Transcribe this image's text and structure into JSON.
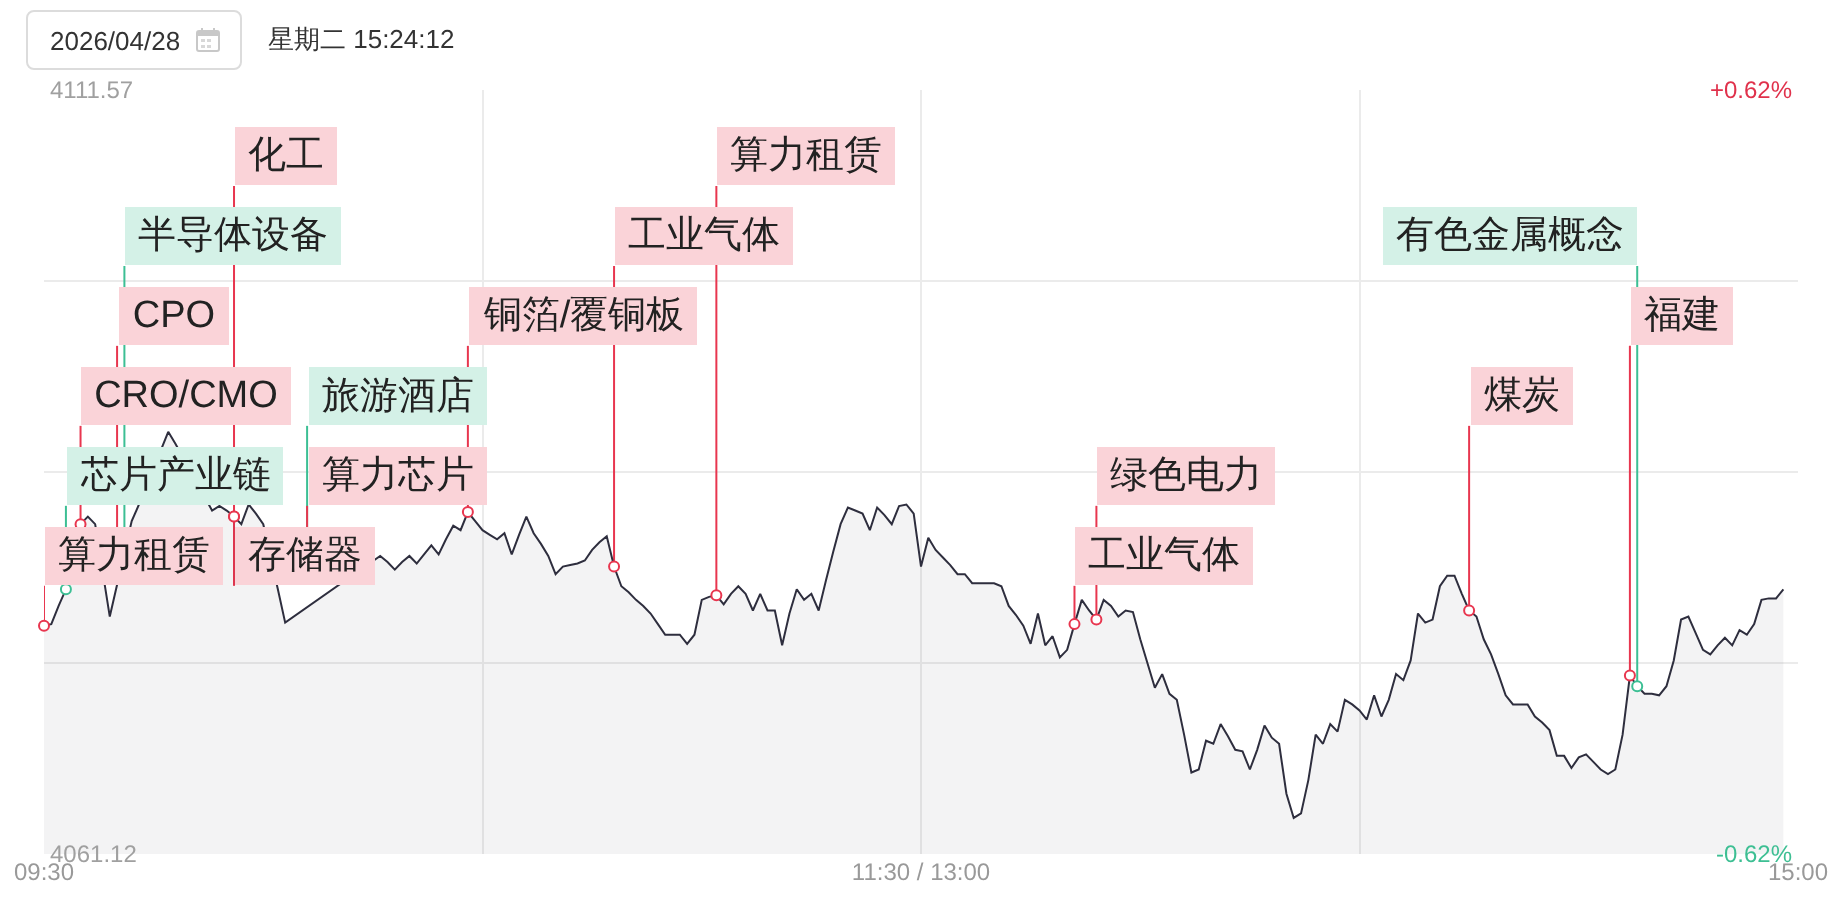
{
  "chart_data": {
    "type": "area",
    "title": "2026/04/28",
    "subtitle": "星期二 15:24:12",
    "categories": [
      "09:30",
      null,
      null,
      null,
      null,
      null,
      null,
      null,
      null,
      null,
      null,
      null,
      null,
      null,
      null,
      null,
      null,
      null,
      null,
      null,
      null,
      null,
      null,
      null,
      null,
      null,
      null,
      null,
      null,
      null,
      null,
      null,
      null,
      null,
      null,
      null,
      null,
      null,
      null,
      null,
      null,
      null,
      null,
      null,
      null,
      null,
      null,
      null,
      null,
      null,
      null,
      null,
      null,
      null,
      null,
      null,
      null,
      null,
      null,
      null,
      null,
      null,
      null,
      null,
      null,
      null,
      null,
      null,
      null,
      null,
      null,
      null,
      null,
      null,
      null,
      null,
      null,
      null,
      null,
      null,
      null,
      null,
      null,
      null,
      null,
      null,
      null,
      null,
      null,
      null,
      null,
      null,
      null,
      null,
      null,
      null,
      null,
      null,
      null,
      null,
      null,
      null,
      null,
      null,
      null,
      null,
      null,
      null,
      null,
      null,
      null,
      null,
      null,
      null,
      null,
      null,
      null,
      null,
      null,
      null,
      "11:30 / 13:00",
      null,
      null,
      null,
      null,
      null,
      null,
      null,
      null,
      null,
      null,
      null,
      null,
      null,
      null,
      null,
      null,
      null,
      null,
      null,
      null,
      null,
      null,
      null,
      null,
      null,
      null,
      null,
      null,
      null,
      null,
      null,
      null,
      null,
      null,
      null,
      null,
      null,
      null,
      null,
      null,
      null,
      null,
      null,
      null,
      null,
      null,
      null,
      null,
      null,
      null,
      null,
      null,
      null,
      null,
      null,
      null,
      null,
      null,
      null,
      null,
      null,
      null,
      null,
      null,
      null,
      null,
      null,
      null,
      null,
      null,
      null,
      null,
      null,
      null,
      null,
      null,
      null,
      null,
      null,
      null,
      null,
      null,
      null,
      null,
      null,
      null,
      null,
      null,
      null,
      null,
      null,
      null,
      null,
      null,
      null,
      null,
      null,
      null,
      null,
      null,
      null,
      null,
      null,
      null,
      null,
      null,
      null,
      null,
      null,
      null,
      null,
      null,
      null,
      null,
      null,
      null,
      null,
      null,
      null,
      "15:00"
    ],
    "ylim": [
      4061.12,
      4111.57
    ],
    "yticks": [
      {
        "value": 4061.12,
        "label": "4061.12"
      },
      {
        "value": 4073.73,
        "label": null
      },
      {
        "value": 4086.35,
        "label": null
      },
      {
        "value": 4098.96,
        "label": null
      },
      {
        "value": 4111.57,
        "label": "4111.57"
      }
    ],
    "y2lim": [
      -0.62,
      0.62
    ],
    "y2ticks": [
      {
        "value": -0.62,
        "label": "-0.62%"
      },
      {
        "value": 0.62,
        "label": "+0.62%"
      }
    ],
    "grid": true,
    "series": [
      {
        "color": "#2e2e3e",
        "values": [
          4076.2,
          4076.3,
          4077.5,
          4078.6,
          null,
          4082.9,
          4083.4,
          4082.9,
          null,
          4076.8,
          null,
          null,
          4083.1,
          4084.2,
          null,
          null,
          null,
          4089.0,
          4088.2,
          null,
          null,
          null,
          null,
          4083.8,
          4084.1,
          4083.8,
          4083.4,
          4082.9,
          4084.2,
          4083.6,
          4082.9,
          null,
          4078.6,
          4076.4,
          null,
          null,
          null,
          null,
          null,
          null,
          null,
          null,
          null,
          null,
          null,
          null,
          4080.8,
          4080.4,
          4079.9,
          4080.4,
          4080.8,
          4080.3,
          4080.9,
          4081.5,
          4080.9,
          4081.9,
          4082.8,
          4082.5,
          4083.7,
          4083.1,
          4082.5,
          4082.2,
          4081.9,
          4082.3,
          4080.9,
          4082.2,
          4083.4,
          4082.3,
          4081.6,
          4080.8,
          4079.6,
          4080.1,
          4080.2,
          4080.3,
          4080.5,
          4081.2,
          4081.7,
          4082.1,
          4080.1,
          4078.8,
          4078.4,
          4077.9,
          4077.5,
          4077.0,
          4076.3,
          4075.6,
          4075.6,
          4075.6,
          4075.0,
          4075.6,
          4077.9,
          4078.1,
          4078.2,
          4077.6,
          4078.3,
          4078.8,
          4078.3,
          4077.2,
          4078.3,
          4077.2,
          4077.2,
          4074.9,
          4077.0,
          4078.6,
          4077.9,
          4078.3,
          4077.2,
          4079.2,
          4081.1,
          4082.9,
          4084.0,
          4083.8,
          4083.6,
          4082.5,
          4084.0,
          4083.5,
          4082.9,
          4084.1,
          4084.2,
          4083.6,
          4080.1,
          4082.0,
          4081.2,
          4080.7,
          4080.2,
          4079.6,
          4079.6,
          4079.0,
          4079.0,
          4079.0,
          4079.0,
          4078.8,
          4077.5,
          4076.9,
          4076.2,
          4075.0,
          4077.0,
          4074.9,
          4075.5,
          4074.1,
          4074.6,
          4076.3,
          4077.9,
          4077.2,
          4076.6,
          4077.9,
          4077.5,
          4076.8,
          4077.2,
          4077.1,
          4075.3,
          4073.7,
          4072.1,
          4073.0,
          4071.7,
          4071.3,
          4069.0,
          4066.5,
          4066.7,
          4068.6,
          4068.4,
          4069.7,
          4068.9,
          4068.0,
          4067.9,
          4066.7,
          4068.0,
          4069.6,
          4068.8,
          4068.4,
          4065.1,
          4063.5,
          4063.8,
          4066.0,
          4069.0,
          4068.4,
          4069.7,
          4069.2,
          4071.3,
          4071.0,
          4070.6,
          4070.0,
          4071.6,
          4070.2,
          4071.3,
          4073.0,
          4072.6,
          4073.9,
          4077.0,
          4076.4,
          4076.6,
          4078.8,
          4079.5,
          4079.5,
          4078.3,
          4077.2,
          4076.8,
          4075.3,
          4074.3,
          4073.0,
          4071.6,
          4071.0,
          4071.0,
          4071.0,
          4070.2,
          4069.8,
          4069.3,
          4067.6,
          4067.6,
          4066.8,
          4067.5,
          4067.7,
          4067.2,
          4066.7,
          4066.4,
          4066.7,
          4069.0,
          4072.9,
          4072.2,
          4071.7,
          4071.7,
          4071.6,
          4072.2,
          4073.9,
          4076.6,
          4076.8,
          4075.7,
          4074.6,
          4074.3,
          4074.9,
          4075.4,
          4074.9,
          4075.9,
          4075.6,
          4076.3,
          4077.9,
          4078.0,
          4078.0,
          4078.6,
          null,
          null
        ]
      },
      {
        "type": "scatter",
        "color": "#3cbf94",
        "values": [
          null,
          null,
          null,
          4078.6,
          null,
          null,
          null,
          null,
          null,
          null,
          null,
          null,
          null,
          null,
          null,
          null,
          null,
          null,
          null,
          null,
          null,
          null,
          null,
          null,
          null,
          null,
          null,
          null,
          null,
          null,
          null,
          null,
          null,
          null,
          null,
          null,
          null,
          null,
          null,
          null,
          null,
          null,
          null,
          null,
          null,
          null,
          null,
          null,
          null,
          null,
          null,
          null,
          null,
          null,
          null,
          null,
          null,
          null,
          null,
          null,
          null,
          null,
          null,
          null,
          null,
          null,
          null,
          null,
          null,
          null,
          null,
          null,
          null,
          null,
          null,
          null,
          null,
          null,
          null,
          null,
          null,
          null,
          null,
          null,
          null,
          null,
          null,
          null,
          null,
          null,
          null,
          null,
          null,
          null,
          null,
          null,
          null,
          null,
          null,
          null,
          null,
          null,
          null,
          null,
          null,
          null,
          null,
          null,
          null,
          null,
          null,
          null,
          null,
          null,
          null,
          null,
          null,
          null,
          null,
          null,
          null,
          null,
          null,
          null,
          null,
          null,
          null,
          null,
          null,
          null,
          null,
          null,
          null,
          null,
          null,
          null,
          null,
          null,
          null,
          null,
          null,
          null,
          null,
          null,
          null,
          null,
          null,
          null,
          null,
          null,
          null,
          null,
          null,
          null,
          null,
          null,
          null,
          null,
          null,
          null,
          null,
          null,
          null,
          null,
          null,
          null,
          null,
          null,
          null,
          null,
          null,
          null,
          null,
          null,
          null,
          null,
          null,
          null,
          null,
          null,
          null,
          null,
          null,
          null,
          null,
          null,
          null,
          null,
          null,
          null,
          null,
          null,
          null,
          null,
          null,
          null,
          null,
          null,
          null,
          null,
          null,
          null,
          null,
          null,
          null,
          null,
          null,
          null,
          null,
          null,
          null,
          null,
          null,
          null,
          null,
          null,
          null,
          null,
          4072.2,
          null,
          null,
          null,
          null,
          null,
          null,
          null,
          null,
          null,
          null,
          null,
          null,
          null,
          null,
          null,
          null,
          null,
          null,
          null,
          null,
          null,
          null
        ],
        "value_labels": [
          null,
          null,
          null,
          "芯片产业链",
          null,
          null,
          null,
          null,
          null,
          null,
          null,
          "半导体设备",
          null,
          null,
          null,
          null,
          null,
          null,
          null,
          null,
          null,
          null,
          null,
          null,
          null,
          null,
          null,
          null,
          null,
          null,
          null,
          null,
          null,
          null,
          null,
          null,
          "旅游酒店",
          null,
          null,
          null,
          null,
          null,
          null,
          null,
          null,
          null,
          null,
          null,
          null,
          null,
          null,
          null,
          null,
          null,
          null,
          null,
          null,
          null,
          null,
          null,
          null,
          null,
          null,
          null,
          null,
          null,
          null,
          null,
          null,
          null,
          null,
          null,
          null,
          null,
          null,
          null,
          null,
          null,
          null,
          null,
          null,
          null,
          null,
          null,
          null,
          null,
          null,
          null,
          null,
          null,
          null,
          null,
          null,
          null,
          null,
          null,
          null,
          null,
          null,
          null,
          null,
          null,
          null,
          null,
          null,
          null,
          null,
          null,
          null,
          null,
          null,
          null,
          null,
          null,
          null,
          null,
          null,
          null,
          null,
          null,
          null,
          null,
          null,
          null,
          null,
          null,
          null,
          null,
          null,
          null,
          null,
          null,
          null,
          null,
          null,
          null,
          null,
          null,
          null,
          null,
          null,
          null,
          null,
          null,
          null,
          null,
          null,
          null,
          null,
          null,
          null,
          null,
          null,
          null,
          null,
          null,
          null,
          null,
          null,
          null,
          null,
          null,
          null,
          null,
          null,
          null,
          null,
          null,
          null,
          null,
          null,
          null,
          null,
          null,
          null,
          null,
          null,
          null,
          null,
          null,
          null,
          null,
          null,
          null,
          null,
          null,
          null,
          null,
          null,
          null,
          null,
          null,
          null,
          null,
          null,
          null,
          null,
          null,
          null,
          null,
          null,
          null,
          null,
          null,
          null,
          null,
          null,
          null,
          null,
          null,
          null,
          null,
          null,
          null,
          null,
          null,
          null,
          null,
          "有色金属概念",
          null,
          null,
          null,
          null,
          null,
          null,
          null,
          null,
          null,
          null,
          null,
          null,
          null,
          null,
          null,
          null,
          null,
          null,
          null,
          null,
          null,
          null
        ]
      },
      {
        "type": "scatter",
        "color": "#e8364f",
        "values": [
          4076.2,
          null,
          null,
          null,
          null,
          4082.9,
          null,
          null,
          null,
          null,
          null,
          null,
          null,
          null,
          null,
          null,
          null,
          null,
          null,
          null,
          null,
          null,
          null,
          null,
          null,
          null,
          4083.4,
          null,
          null,
          null,
          null,
          null,
          null,
          null,
          null,
          null,
          null,
          null,
          null,
          null,
          null,
          null,
          null,
          null,
          null,
          null,
          null,
          null,
          null,
          null,
          null,
          null,
          null,
          null,
          null,
          null,
          null,
          null,
          4083.7,
          null,
          null,
          null,
          null,
          null,
          null,
          null,
          null,
          null,
          null,
          null,
          null,
          null,
          null,
          null,
          null,
          null,
          null,
          null,
          4080.1,
          null,
          null,
          null,
          null,
          null,
          null,
          null,
          null,
          null,
          null,
          null,
          null,
          null,
          4078.2,
          null,
          null,
          null,
          null,
          null,
          null,
          null,
          null,
          null,
          null,
          null,
          null,
          null,
          null,
          null,
          null,
          null,
          null,
          null,
          null,
          null,
          null,
          null,
          null,
          null,
          null,
          null,
          null,
          null,
          null,
          null,
          null,
          null,
          null,
          null,
          null,
          null,
          null,
          null,
          null,
          null,
          null,
          null,
          null,
          null,
          null,
          null,
          null,
          4076.3,
          null,
          null,
          4076.6,
          null,
          null,
          null,
          null,
          null,
          null,
          null,
          null,
          null,
          null,
          null,
          null,
          null,
          null,
          null,
          null,
          null,
          null,
          null,
          null,
          null,
          null,
          null,
          null,
          null,
          null,
          null,
          null,
          null,
          null,
          null,
          null,
          null,
          null,
          null,
          null,
          null,
          null,
          null,
          null,
          null,
          null,
          null,
          null,
          null,
          null,
          null,
          null,
          null,
          null,
          4077.2,
          null,
          null,
          null,
          null,
          null,
          null,
          null,
          null,
          null,
          null,
          null,
          null,
          null,
          null,
          null,
          null,
          null,
          null,
          null,
          null,
          null,
          4072.9,
          null,
          null,
          null,
          null,
          null,
          null,
          null,
          null,
          null,
          null,
          null,
          null,
          null,
          null,
          null,
          null,
          null,
          null,
          null,
          null,
          null,
          null,
          null
        ],
        "value_labels": [
          "算力租赁",
          null,
          null,
          null,
          null,
          "CRO/CMO",
          null,
          null,
          null,
          null,
          "CPO",
          null,
          null,
          null,
          null,
          null,
          null,
          null,
          null,
          null,
          null,
          null,
          null,
          null,
          null,
          null,
          "存储器",
          null,
          null,
          null,
          null,
          null,
          null,
          null,
          null,
          null,
          "算力芯片",
          null,
          null,
          null,
          null,
          null,
          null,
          null,
          null,
          null,
          null,
          null,
          null,
          null,
          null,
          null,
          null,
          null,
          null,
          null,
          null,
          null,
          "铜箔/覆铜板",
          null,
          null,
          null,
          null,
          null,
          null,
          null,
          null,
          null,
          null,
          null,
          null,
          null,
          null,
          null,
          null,
          null,
          null,
          null,
          "工业气体",
          null,
          null,
          null,
          null,
          null,
          null,
          null,
          null,
          null,
          null,
          null,
          null,
          null,
          "算力租赁",
          null,
          null,
          null,
          null,
          null,
          null,
          null,
          null,
          null,
          null,
          null,
          null,
          null,
          null,
          null,
          null,
          null,
          null,
          null,
          null,
          null,
          null,
          null,
          null,
          null,
          null,
          null,
          null,
          null,
          null,
          null,
          null,
          null,
          null,
          null,
          null,
          null,
          null,
          null,
          null,
          null,
          null,
          null,
          null,
          null,
          null,
          null,
          null,
          "工业气体",
          null,
          null,
          "绿色电力",
          null,
          null,
          null,
          null,
          null,
          null,
          null,
          null,
          null,
          null,
          null,
          null,
          null,
          null,
          null,
          null,
          null,
          null,
          null,
          null,
          null,
          null,
          null,
          null,
          null,
          null,
          null,
          null,
          null,
          null,
          null,
          null,
          null,
          null,
          null,
          null,
          null,
          null,
          null,
          null,
          null,
          null,
          null,
          null,
          null,
          null,
          null,
          null,
          null,
          null,
          "煤炭",
          null,
          null,
          null,
          null,
          null,
          null,
          null,
          null,
          null,
          null,
          null,
          null,
          null,
          null,
          null,
          null,
          null,
          null,
          null,
          null,
          null,
          "福建",
          null,
          null,
          null,
          null,
          null,
          null,
          null,
          null,
          null,
          null,
          null,
          null,
          null,
          null,
          null,
          null,
          null,
          null,
          null,
          null,
          null,
          null,
          null
        ]
      },
      {
        "type": "scatter",
        "color": "#e8364f",
        "values": [
          null,
          null,
          null,
          null,
          null,
          null,
          null,
          null,
          null,
          null,
          null,
          null,
          null,
          null,
          null,
          null,
          null,
          null,
          null,
          null,
          null,
          null,
          null,
          null,
          null,
          null,
          4083.4,
          null,
          null,
          null,
          null,
          null,
          null,
          null,
          null,
          null,
          null,
          null,
          null,
          null,
          null,
          null,
          null,
          null,
          null,
          null,
          null,
          null,
          null,
          null,
          null,
          null,
          null,
          null,
          null,
          null,
          null,
          null,
          null,
          null,
          null,
          null,
          null,
          null,
          null,
          null,
          null,
          null,
          null,
          null,
          null,
          null,
          null,
          null,
          null,
          null,
          null,
          null,
          null,
          null,
          null,
          null,
          null,
          null,
          null,
          null,
          null,
          null,
          null,
          null,
          null,
          null,
          null,
          null,
          null,
          null,
          null,
          null,
          null,
          null,
          null,
          null,
          null,
          null,
          null,
          null,
          null,
          null,
          null,
          null,
          null,
          null,
          null,
          null,
          null,
          null,
          null,
          null,
          null,
          null,
          null,
          null,
          null,
          null,
          null,
          null,
          null,
          null,
          null,
          null,
          null,
          null,
          null,
          null,
          null,
          null,
          null,
          null,
          null,
          null,
          null,
          null,
          null,
          null,
          null,
          null,
          null,
          null,
          null,
          null,
          null,
          null,
          null,
          null,
          null,
          null,
          null,
          null,
          null,
          null,
          null,
          null,
          null,
          null,
          null,
          null,
          null,
          null,
          null,
          null,
          null,
          null,
          null,
          null,
          null,
          null,
          null,
          null,
          null,
          null,
          null,
          null,
          null,
          null,
          null,
          null,
          null,
          null,
          null,
          null,
          null,
          null,
          null,
          null,
          null,
          null,
          null,
          null,
          null,
          null,
          null,
          null,
          null,
          null,
          null,
          null,
          null,
          null,
          null,
          null,
          null,
          null,
          null,
          null,
          null,
          null,
          null,
          null,
          null,
          null,
          null,
          null,
          null,
          null,
          null,
          null,
          null,
          null,
          null,
          null,
          null,
          null,
          null,
          null,
          null,
          null,
          null,
          null,
          null,
          null,
          null
        ],
        "value_labels": [
          null,
          null,
          null,
          null,
          null,
          null,
          null,
          null,
          null,
          null,
          null,
          null,
          null,
          null,
          null,
          null,
          null,
          null,
          null,
          null,
          null,
          null,
          null,
          null,
          null,
          null,
          "化工",
          null,
          null,
          null,
          null,
          null,
          null,
          null,
          null,
          null,
          null,
          null,
          null,
          null,
          null,
          null,
          null,
          null,
          null,
          null,
          null,
          null,
          null,
          null,
          null,
          null,
          null,
          null,
          null,
          null,
          null,
          null,
          null,
          null,
          null,
          null,
          null,
          null,
          null,
          null,
          null,
          null,
          null,
          null,
          null,
          null,
          null,
          null,
          null,
          null,
          null,
          null,
          null,
          null,
          null,
          null,
          null,
          null,
          null,
          null,
          null,
          null,
          null,
          null,
          null,
          null,
          null,
          null,
          null,
          null,
          null,
          null,
          null,
          null,
          null,
          null,
          null,
          null,
          null,
          null,
          null,
          null,
          null,
          null,
          null,
          null,
          null,
          null,
          null,
          null,
          null,
          null,
          null,
          null,
          null,
          null,
          null,
          null,
          null,
          null,
          null,
          null,
          null,
          null,
          null,
          null,
          null,
          null,
          null,
          null,
          null,
          null,
          null,
          null,
          null,
          null,
          null,
          null,
          null,
          null,
          null,
          null,
          null,
          null,
          null,
          null,
          null,
          null,
          null,
          null,
          null,
          null,
          null,
          null,
          null,
          null,
          null,
          null,
          null,
          null,
          null,
          null,
          null,
          null,
          null,
          null,
          null,
          null,
          null,
          null,
          null,
          null,
          null,
          null,
          null,
          null,
          null,
          null,
          null,
          null,
          null,
          null,
          null,
          null,
          null,
          null,
          null,
          null,
          null,
          null,
          null,
          null,
          null,
          null,
          null,
          null,
          null,
          null,
          null,
          null,
          null,
          null,
          null,
          null,
          null,
          null,
          null,
          null,
          null,
          null,
          null,
          null,
          null,
          null,
          null,
          null,
          null,
          null,
          null,
          null,
          null,
          null,
          null,
          null,
          null,
          null,
          null,
          null,
          null,
          null,
          null,
          null,
          null,
          null,
          null
        ]
      }
    ]
  }
}
